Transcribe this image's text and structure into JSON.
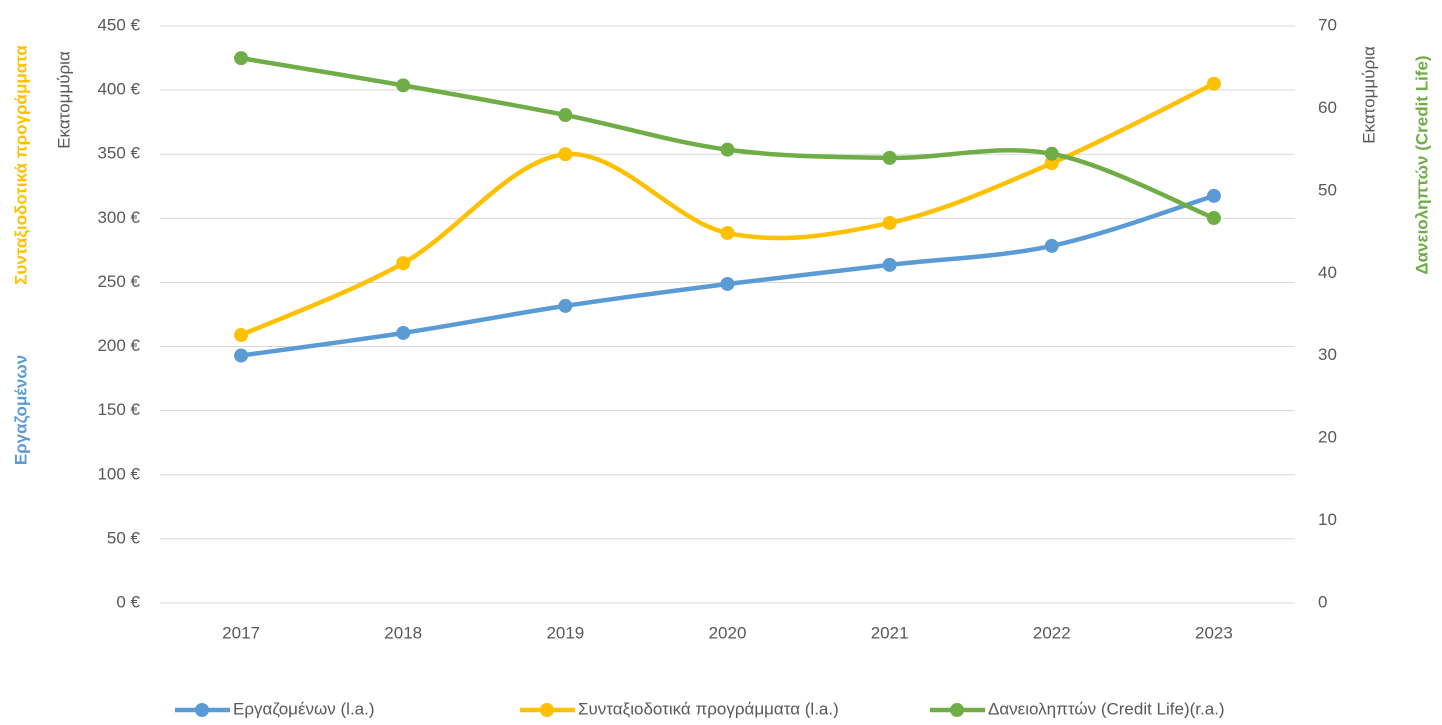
{
  "chart_data": {
    "type": "line",
    "smooth": true,
    "grid": true,
    "legend": "bottom",
    "categories": [
      "2017",
      "2018",
      "2019",
      "2020",
      "2021",
      "2022",
      "2023"
    ],
    "series": [
      {
        "name": "Εργαζομένων (l.a.)",
        "color": "#5b9bd5",
        "axis": "y",
        "values": [
          193,
          210.6,
          231.7,
          248.8,
          263.7,
          278.5,
          317.5
        ]
      },
      {
        "name": "Συνταξιοδοτικά προγράμματα (l.a.)",
        "color": "#ffc000",
        "axis": "y",
        "values": [
          209,
          265,
          350,
          288.6,
          296.4,
          343,
          405
        ]
      },
      {
        "name": "Δανειοληπτών (Credit Life)(r.a.)",
        "color": "#70ad47",
        "axis": "y2",
        "values": [
          66.1,
          62.8,
          59.2,
          55.0,
          54.0,
          54.5,
          46.7
        ]
      }
    ],
    "ylim": [
      0,
      450
    ],
    "yticks": [
      {
        "value": 0,
        "label": "0 €"
      },
      {
        "value": 50,
        "label": "50 €"
      },
      {
        "value": 100,
        "label": "100 €"
      },
      {
        "value": 150,
        "label": "150 €"
      },
      {
        "value": 200,
        "label": "200 €"
      },
      {
        "value": 250,
        "label": "250 €"
      },
      {
        "value": 300,
        "label": "300 €"
      },
      {
        "value": 350,
        "label": "350 €"
      },
      {
        "value": 400,
        "label": "400 €"
      },
      {
        "value": 450,
        "label": "450 €"
      }
    ],
    "y2lim": [
      0,
      70
    ],
    "y2ticks": [
      0,
      10,
      20,
      30,
      40,
      50,
      60,
      70
    ],
    "ylabels": [
      {
        "text": "Εργαζομένων",
        "color": "#5b9bd5",
        "bold": true
      },
      {
        "text": "Συνταξιοδοτικά προγράμματα",
        "color": "#ffc000",
        "bold": true
      },
      {
        "text": "Εκατομμύρια",
        "color": "#595959",
        "bold": false
      }
    ],
    "y2labels": [
      {
        "text": "Εκατομμύρια",
        "color": "#595959",
        "bold": false
      },
      {
        "text": "Δανειοληπτών (Credit Life)",
        "color": "#70ad47",
        "bold": true
      }
    ]
  }
}
